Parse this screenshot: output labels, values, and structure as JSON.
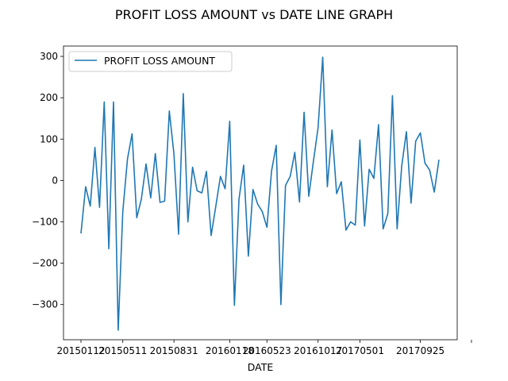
{
  "chart_data": {
    "type": "line",
    "title": "PROFIT LOSS AMOUNT vs DATE LINE GRAPH",
    "xlabel": "DATE",
    "ylabel": "",
    "x_tick_labels": [
      "20150112",
      "20150511",
      "20150831",
      "20160118",
      "20160523",
      "20161017",
      "20170501",
      "20170925"
    ],
    "ylim": [
      -385,
      325
    ],
    "y_ticks": [
      -300,
      -200,
      -100,
      0,
      100,
      200,
      300
    ],
    "y_tick_labels": [
      "−300",
      "−200",
      "−100",
      "0",
      "100",
      "200",
      "300"
    ],
    "grid": false,
    "legend_position": "top-left",
    "series": [
      {
        "name": "PROFIT LOSS AMOUNT",
        "color": "#1f77b4",
        "values": [
          -128,
          -15,
          -62,
          80,
          -65,
          190,
          -165,
          190,
          -362,
          -75,
          52,
          113,
          -90,
          -45,
          40,
          -42,
          65,
          -53,
          -50,
          168,
          65,
          -130,
          210,
          -100,
          32,
          -25,
          -30,
          22,
          -133,
          -62,
          10,
          -20,
          143,
          -302,
          -45,
          37,
          -183,
          -22,
          -57,
          -75,
          -113,
          23,
          85,
          -300,
          -12,
          10,
          68,
          -52,
          165,
          -38,
          47,
          127,
          298,
          -15,
          122,
          -32,
          -3,
          -120,
          -100,
          -108,
          98,
          -110,
          27,
          5,
          135,
          -117,
          -80,
          205,
          -117,
          35,
          118,
          -55,
          95,
          115,
          42,
          25,
          -28,
          50
        ],
        "x_tick_indices": [
          0,
          9,
          20,
          32,
          40,
          51,
          60,
          73
        ]
      }
    ]
  }
}
